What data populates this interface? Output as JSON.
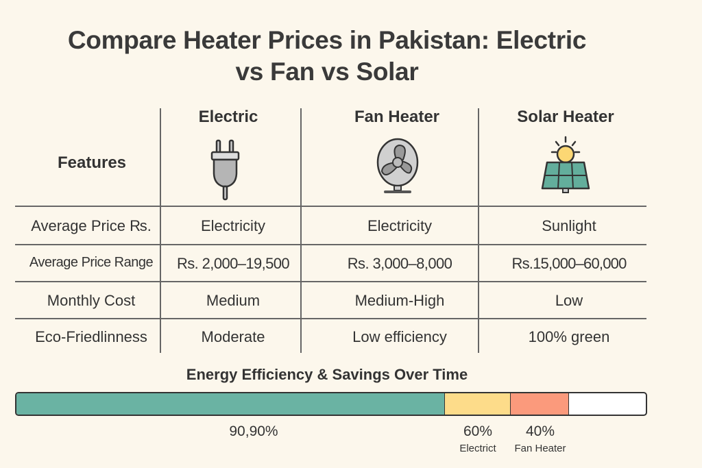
{
  "title_line1": "Compare Heater Prices in Pakistan: Electric",
  "title_line2": "vs Fan vs Solar",
  "table": {
    "features_label": "Features",
    "columns": [
      {
        "label": "Electric",
        "icon": "plug-icon"
      },
      {
        "label": "Fan Heater",
        "icon": "fan-icon"
      },
      {
        "label": "Solar Heater",
        "icon": "solar-panel-sun-icon"
      }
    ],
    "rows": [
      {
        "label": "Average Price ₨.",
        "values": [
          "Electricity",
          "Electricity",
          "Sunlight"
        ]
      },
      {
        "label": "Average Price Range",
        "values": [
          "Rs. 2,000–19,500",
          "Rs. 3,000–8,000",
          "Rs.15,000–60,000"
        ]
      },
      {
        "label": "Monthly Cost",
        "values": [
          "Medium",
          "Medium-High",
          "Low"
        ]
      },
      {
        "label": "Eco-Friedlinness",
        "values": [
          "Moderate",
          "Low efficiency",
          "100% green"
        ]
      }
    ]
  },
  "efficiency": {
    "title": "Energy Efficiency & Savings Over Time",
    "segments": [
      {
        "label": "90,90%",
        "sublabel": "",
        "fill_percent": 68.1,
        "color": "#6ab3a3"
      },
      {
        "label": "60%",
        "sublabel": "Electrict",
        "fill_percent": 10.4,
        "color": "#fddc8a"
      },
      {
        "label": "40%",
        "sublabel": "Fan Heater",
        "fill_percent": 9.3,
        "color": "#fb9a7c"
      }
    ]
  }
}
